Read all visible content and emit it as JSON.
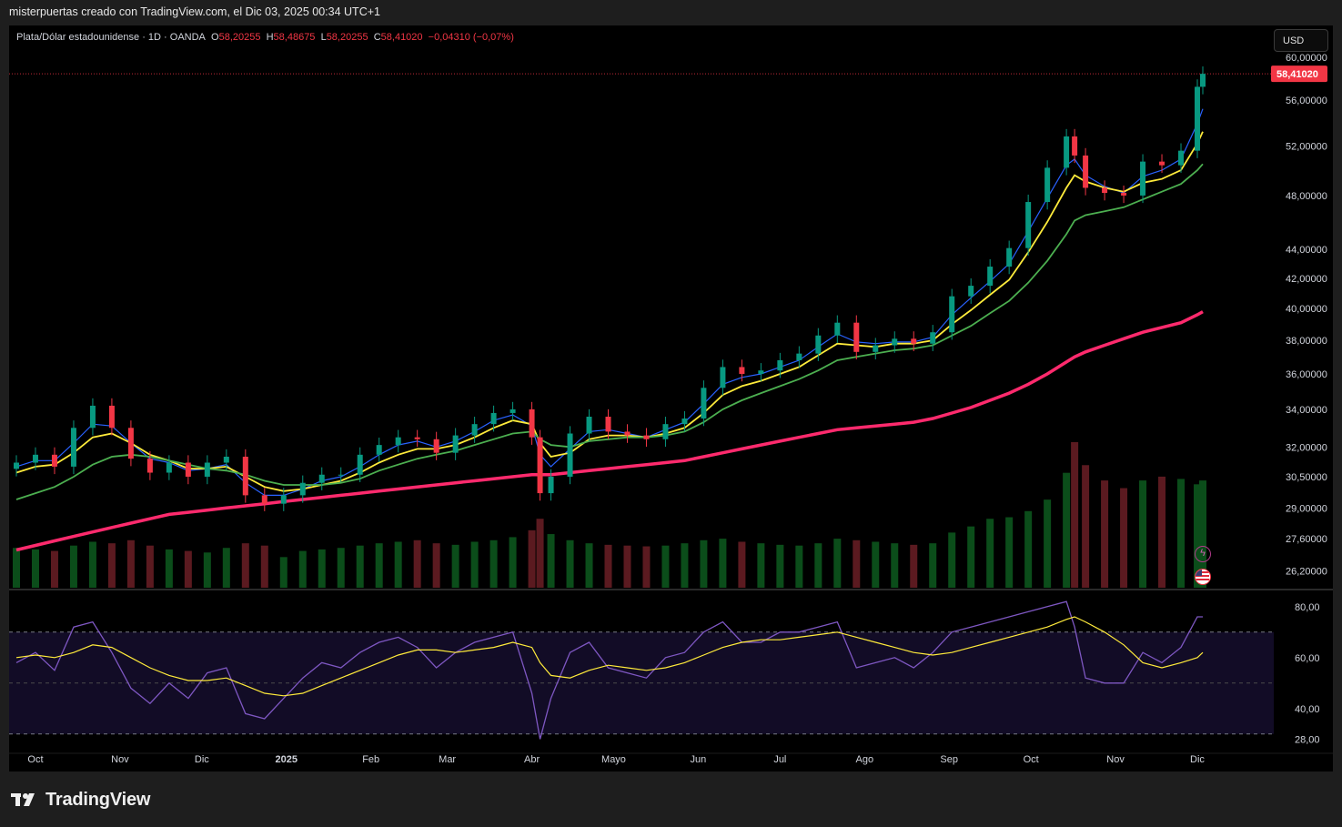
{
  "caption": "misterpuertas creado con TradingView.com, el Dic 03, 2025 00:34 UTC+1",
  "legend": {
    "symbol": "Plata/Dólar estadounidense · 1D · OANDA",
    "o_label": "O",
    "o_value": "58,20255",
    "h_label": "H",
    "h_value": "58,48675",
    "l_label": "L",
    "l_value": "58,20255",
    "c_label": "C",
    "c_value": "58,41020",
    "change": "−0,04310 (−0,07%)"
  },
  "currency": "USD",
  "brand": "TradingView",
  "colors": {
    "up": "#089981",
    "down": "#f23645",
    "ema_fast": "#2962ff",
    "ema_mid": "#ffeb3b",
    "ema_slow": "#4caf50",
    "ema_long": "#ff2a6d",
    "rsi": "#7e57c2",
    "rsi_ma": "#ffeb3b",
    "last_price_bg": "#f23645"
  },
  "icons": [
    "lightning-icon",
    "us-flag-icon"
  ],
  "chart_data": [
    {
      "type": "candlestick",
      "title": "Plata/Dólar estadounidense · 1D · OANDA",
      "y_scale": "log",
      "ylim": [
        25.5,
        61.5
      ],
      "y_ticks": [
        "60,00000",
        "56,00000",
        "52,00000",
        "48,00000",
        "44,00000",
        "42,00000",
        "40,00000",
        "38,00000",
        "36,00000",
        "34,00000",
        "32,00000",
        "30,50000",
        "29,00000",
        "27,60000",
        "26,20000"
      ],
      "y_tick_values": [
        60,
        56,
        52,
        48,
        44,
        42,
        40,
        38,
        36,
        34,
        32,
        30.5,
        29,
        27.6,
        26.2
      ],
      "x_ticks": [
        "Oct",
        "Nov",
        "Dic",
        "2025",
        "Feb",
        "Mar",
        "Abr",
        "Mayo",
        "Jun",
        "Jul",
        "Ago",
        "Sep",
        "Oct",
        "Nov",
        "Dic"
      ],
      "last_price_label": "58,41020",
      "last_price": 58.4102,
      "x": [
        "2024-09-24",
        "2024-10-01",
        "2024-10-08",
        "2024-10-15",
        "2024-10-22",
        "2024-10-29",
        "2024-11-05",
        "2024-11-12",
        "2024-11-19",
        "2024-11-26",
        "2024-12-03",
        "2024-12-10",
        "2024-12-17",
        "2024-12-24",
        "2024-12-31",
        "2025-01-07",
        "2025-01-14",
        "2025-01-21",
        "2025-01-28",
        "2025-02-04",
        "2025-02-11",
        "2025-02-18",
        "2025-02-25",
        "2025-03-04",
        "2025-03-11",
        "2025-03-18",
        "2025-03-25",
        "2025-04-01",
        "2025-04-04",
        "2025-04-08",
        "2025-04-15",
        "2025-04-22",
        "2025-04-29",
        "2025-05-06",
        "2025-05-13",
        "2025-05-20",
        "2025-05-27",
        "2025-06-03",
        "2025-06-10",
        "2025-06-17",
        "2025-06-24",
        "2025-07-01",
        "2025-07-08",
        "2025-07-15",
        "2025-07-22",
        "2025-07-29",
        "2025-08-05",
        "2025-08-12",
        "2025-08-19",
        "2025-08-26",
        "2025-09-02",
        "2025-09-09",
        "2025-09-16",
        "2025-09-23",
        "2025-09-30",
        "2025-10-07",
        "2025-10-14",
        "2025-10-17",
        "2025-10-21",
        "2025-10-28",
        "2025-11-04",
        "2025-11-11",
        "2025-11-18",
        "2025-11-25",
        "2025-12-01",
        "2025-12-03"
      ],
      "close": [
        31.2,
        31.6,
        31.0,
        33.0,
        34.2,
        33.0,
        31.4,
        30.7,
        31.2,
        30.5,
        31.2,
        31.5,
        29.6,
        29.2,
        29.6,
        30.2,
        30.6,
        30.6,
        31.6,
        32.1,
        32.5,
        32.4,
        31.7,
        32.6,
        33.2,
        33.8,
        34.0,
        32.5,
        29.7,
        30.5,
        32.7,
        33.6,
        32.8,
        32.6,
        32.4,
        33.2,
        33.5,
        35.2,
        36.4,
        36.0,
        36.2,
        36.8,
        37.2,
        38.3,
        39.1,
        37.3,
        37.7,
        38.1,
        37.8,
        38.5,
        40.8,
        41.5,
        42.8,
        44.1,
        47.5,
        50.2,
        52.8,
        51.2,
        48.6,
        48.2,
        48.0,
        50.7,
        50.4,
        51.6,
        57.2,
        58.4102
      ],
      "series": [
        {
          "name": "EMA 10",
          "color": "#2962ff",
          "values": [
            31.0,
            31.3,
            31.3,
            32.2,
            33.2,
            33.1,
            32.2,
            31.4,
            31.2,
            30.8,
            30.9,
            31.1,
            30.2,
            29.6,
            29.6,
            29.9,
            30.3,
            30.5,
            31.0,
            31.6,
            32.1,
            32.3,
            32.0,
            32.3,
            32.8,
            33.4,
            33.7,
            33.1,
            31.6,
            31.0,
            31.9,
            32.8,
            32.9,
            32.7,
            32.5,
            32.9,
            33.3,
            34.3,
            35.4,
            35.8,
            36.0,
            36.4,
            36.8,
            37.6,
            38.4,
            37.9,
            37.8,
            37.9,
            37.9,
            38.2,
            39.6,
            40.7,
            41.8,
            43.0,
            45.3,
            47.8,
            50.4,
            50.9,
            49.6,
            48.7,
            48.2,
            49.5,
            50.0,
            50.9,
            53.9,
            55.2
          ]
        },
        {
          "name": "EMA 20",
          "color": "#ffeb3b",
          "values": [
            30.7,
            31.0,
            31.1,
            31.7,
            32.5,
            32.7,
            32.2,
            31.6,
            31.3,
            30.9,
            30.9,
            31.0,
            30.5,
            30.0,
            29.8,
            29.9,
            30.1,
            30.3,
            30.7,
            31.2,
            31.6,
            31.9,
            31.9,
            32.1,
            32.5,
            33.0,
            33.4,
            33.2,
            32.2,
            31.5,
            31.7,
            32.4,
            32.6,
            32.6,
            32.5,
            32.7,
            33.0,
            33.8,
            34.8,
            35.3,
            35.6,
            36.0,
            36.4,
            37.1,
            37.8,
            37.7,
            37.6,
            37.8,
            37.8,
            38.0,
            39.0,
            39.9,
            40.9,
            41.9,
            43.8,
            46.0,
            48.6,
            49.6,
            49.1,
            48.6,
            48.3,
            49.0,
            49.3,
            50.0,
            52.2,
            53.2
          ]
        },
        {
          "name": "EMA 50",
          "color": "#4caf50",
          "values": [
            29.4,
            29.7,
            30.0,
            30.5,
            31.1,
            31.5,
            31.6,
            31.5,
            31.3,
            31.1,
            30.9,
            30.8,
            30.6,
            30.3,
            30.1,
            30.1,
            30.1,
            30.2,
            30.4,
            30.8,
            31.1,
            31.4,
            31.6,
            31.8,
            32.1,
            32.4,
            32.7,
            32.8,
            32.4,
            32.1,
            32.0,
            32.3,
            32.4,
            32.5,
            32.5,
            32.6,
            32.8,
            33.3,
            34.0,
            34.5,
            34.9,
            35.3,
            35.7,
            36.2,
            36.8,
            37.0,
            37.2,
            37.4,
            37.5,
            37.7,
            38.3,
            38.9,
            39.7,
            40.5,
            41.7,
            43.2,
            45.1,
            46.1,
            46.5,
            46.8,
            47.1,
            47.7,
            48.3,
            48.9,
            50.0,
            50.5
          ]
        },
        {
          "name": "EMA 200",
          "color": "#ff2a6d",
          "values": [
            27.1,
            27.3,
            27.5,
            27.7,
            27.9,
            28.1,
            28.3,
            28.5,
            28.7,
            28.8,
            28.9,
            29.0,
            29.1,
            29.2,
            29.3,
            29.4,
            29.5,
            29.6,
            29.7,
            29.8,
            29.9,
            30.0,
            30.1,
            30.2,
            30.3,
            30.4,
            30.5,
            30.6,
            30.6,
            30.6,
            30.7,
            30.8,
            30.9,
            31.0,
            31.1,
            31.2,
            31.3,
            31.5,
            31.7,
            31.9,
            32.1,
            32.3,
            32.5,
            32.7,
            32.9,
            33.0,
            33.1,
            33.2,
            33.3,
            33.5,
            33.8,
            34.1,
            34.5,
            34.9,
            35.4,
            36.0,
            36.7,
            37.0,
            37.3,
            37.7,
            38.1,
            38.5,
            38.8,
            39.1,
            39.6,
            39.8
          ]
        }
      ]
    },
    {
      "type": "bar",
      "title": "Volume",
      "values": [
        52,
        50,
        48,
        55,
        60,
        58,
        62,
        55,
        50,
        48,
        46,
        52,
        58,
        55,
        40,
        48,
        50,
        52,
        55,
        58,
        60,
        62,
        58,
        56,
        60,
        62,
        66,
        75,
        90,
        70,
        62,
        58,
        56,
        55,
        54,
        55,
        58,
        62,
        64,
        60,
        58,
        56,
        55,
        58,
        64,
        62,
        60,
        58,
        56,
        58,
        72,
        80,
        90,
        92,
        100,
        115,
        150,
        190,
        160,
        140,
        130,
        140,
        145,
        142,
        135,
        140
      ]
    },
    {
      "type": "line",
      "title": "RSI",
      "ylim": [
        26,
        86
      ],
      "y_ticks": [
        "80,00",
        "60,00",
        "40,00",
        "28,00"
      ],
      "y_tick_values": [
        80,
        60,
        40,
        28
      ],
      "band": [
        70,
        30
      ],
      "series": [
        {
          "name": "RSI",
          "color": "#7e57c2",
          "values": [
            58,
            62,
            55,
            72,
            74,
            62,
            48,
            42,
            50,
            44,
            54,
            56,
            38,
            36,
            44,
            52,
            58,
            56,
            62,
            66,
            68,
            64,
            56,
            62,
            66,
            68,
            70,
            46,
            28,
            44,
            62,
            66,
            56,
            54,
            52,
            60,
            62,
            70,
            74,
            66,
            66,
            70,
            70,
            72,
            74,
            56,
            58,
            60,
            56,
            62,
            70,
            72,
            74,
            76,
            78,
            80,
            82,
            72,
            52,
            50,
            50,
            62,
            58,
            64,
            76,
            76
          ]
        },
        {
          "name": "RSI MA",
          "color": "#ffeb3b",
          "values": [
            60,
            61,
            60,
            62,
            65,
            64,
            60,
            56,
            53,
            51,
            51,
            52,
            49,
            46,
            45,
            46,
            49,
            52,
            55,
            58,
            61,
            63,
            63,
            62,
            63,
            64,
            66,
            64,
            58,
            53,
            52,
            55,
            57,
            56,
            55,
            56,
            58,
            61,
            64,
            66,
            67,
            67,
            68,
            69,
            70,
            68,
            66,
            64,
            62,
            61,
            62,
            64,
            66,
            68,
            70,
            72,
            75,
            76,
            74,
            70,
            65,
            58,
            56,
            58,
            60,
            62
          ]
        }
      ]
    }
  ]
}
